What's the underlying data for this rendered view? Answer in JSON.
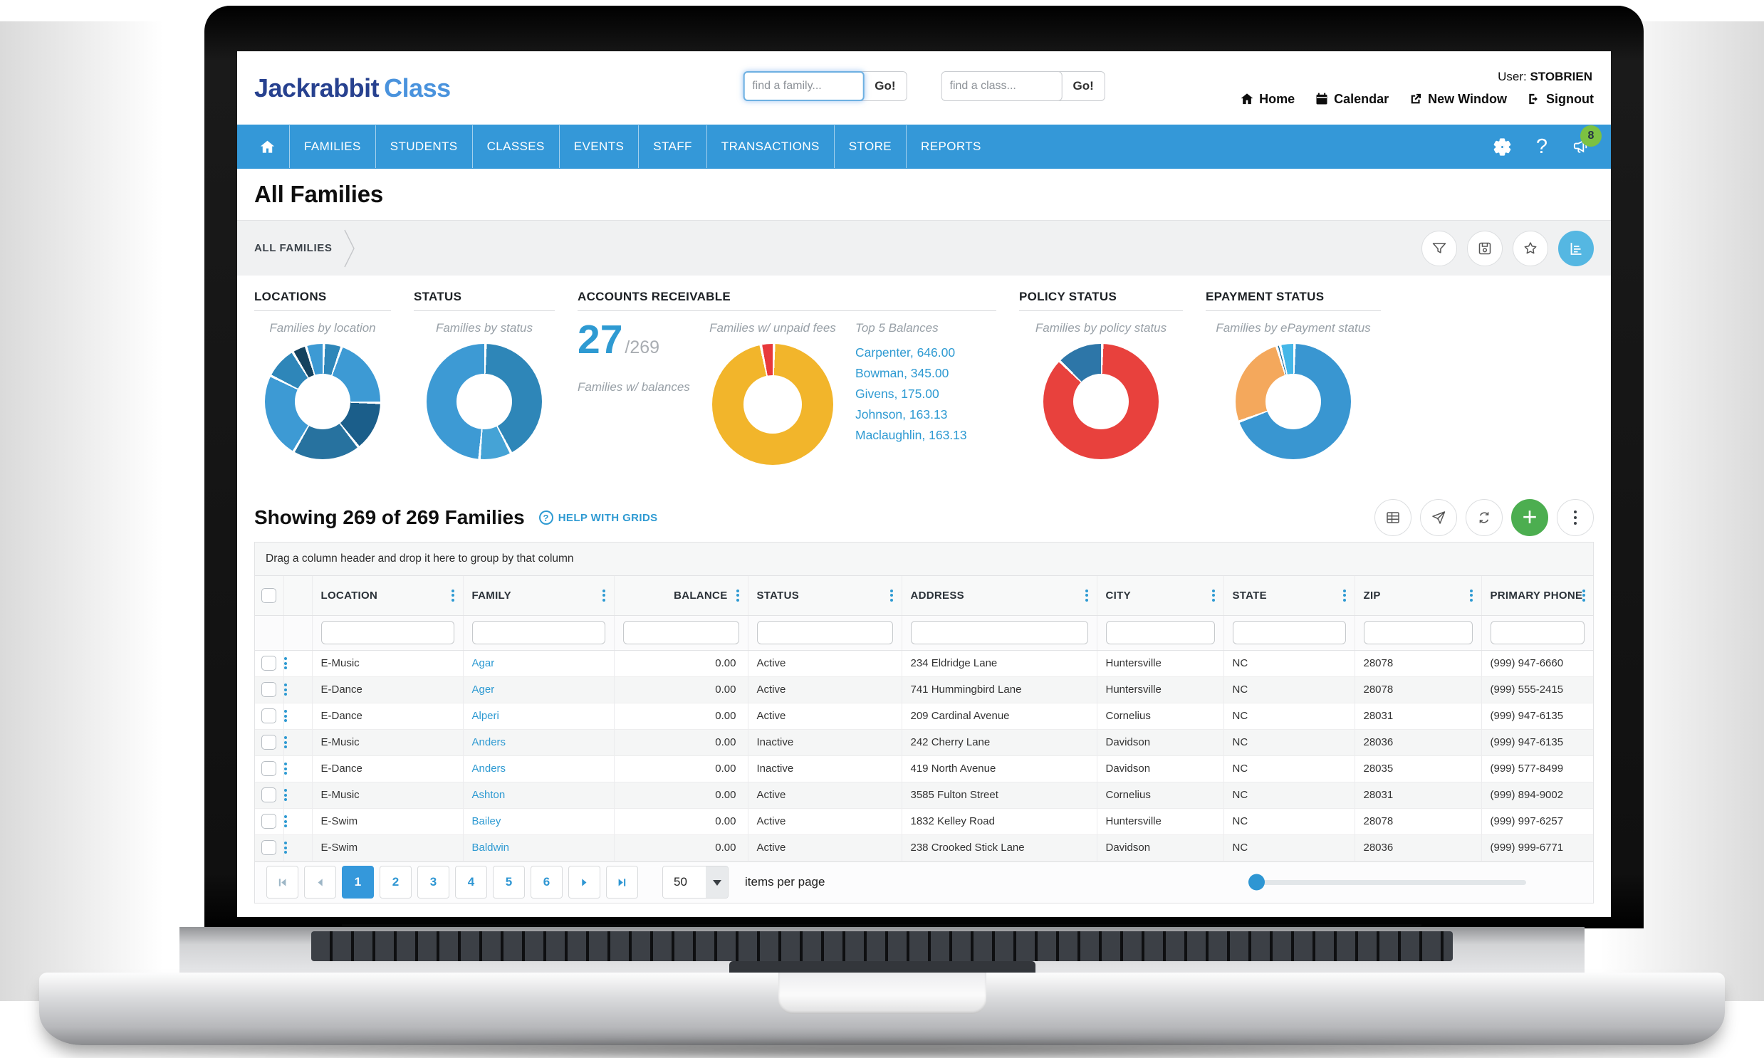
{
  "header": {
    "logo": {
      "part1": "Jackrabbit",
      "part2": "Class"
    },
    "family_search": {
      "placeholder": "find a family...",
      "go_label": "Go!"
    },
    "class_search": {
      "placeholder": "find a class...",
      "go_label": "Go!"
    },
    "user_label": "User:",
    "user_name": "STOBRIEN",
    "links": [
      {
        "label": "Home",
        "icon": "home-icon"
      },
      {
        "label": "Calendar",
        "icon": "calendar-icon"
      },
      {
        "label": "New Window",
        "icon": "new-window-icon"
      },
      {
        "label": "Signout",
        "icon": "signout-icon"
      }
    ]
  },
  "nav": {
    "items": [
      "FAMILIES",
      "STUDENTS",
      "CLASSES",
      "EVENTS",
      "STAFF",
      "TRANSACTIONS",
      "STORE",
      "REPORTS"
    ],
    "notification_count": "8"
  },
  "page": {
    "title": "All Families",
    "breadcrumb": "ALL FAMILIES"
  },
  "widgets": {
    "locations": {
      "title": "LOCATIONS",
      "subtitle": "Families by location"
    },
    "status": {
      "title": "STATUS",
      "subtitle": "Families by status"
    },
    "accounts_receivable": {
      "title": "ACCOUNTS RECEIVABLE",
      "count": "27",
      "total": "/269",
      "count_caption": "Families w/ balances",
      "donut_caption": "Families w/ unpaid fees",
      "top5_title": "Top 5 Balances",
      "top5": [
        "Carpenter, 646.00",
        "Bowman, 345.00",
        "Givens, 175.00",
        "Johnson, 163.13",
        "Maclaughlin, 163.13"
      ]
    },
    "policy": {
      "title": "POLICY STATUS",
      "subtitle": "Families by policy status"
    },
    "epayment": {
      "title": "EPAYMENT STATUS",
      "subtitle": "Families by ePayment status"
    }
  },
  "grid": {
    "summary": "Showing 269 of 269 Families",
    "help_label": "HELP WITH GRIDS",
    "group_hint": "Drag a column header and drop it here to group by that column",
    "columns": [
      "LOCATION",
      "FAMILY",
      "BALANCE",
      "STATUS",
      "ADDRESS",
      "CITY",
      "STATE",
      "ZIP",
      "PRIMARY PHONE"
    ],
    "rows": [
      {
        "location": "E-Music",
        "family": "Agar",
        "balance": "0.00",
        "status": "Active",
        "address": "234 Eldridge Lane",
        "city": "Huntersville",
        "state": "NC",
        "zip": "28078",
        "phone": "(999) 947-6660"
      },
      {
        "location": "E-Dance",
        "family": "Ager",
        "balance": "0.00",
        "status": "Active",
        "address": "741 Hummingbird Lane",
        "city": "Huntersville",
        "state": "NC",
        "zip": "28078",
        "phone": "(999) 555-2415"
      },
      {
        "location": "E-Dance",
        "family": "Alperi",
        "balance": "0.00",
        "status": "Active",
        "address": "209 Cardinal Avenue",
        "city": "Cornelius",
        "state": "NC",
        "zip": "28031",
        "phone": "(999) 947-6135"
      },
      {
        "location": "E-Music",
        "family": "Anders",
        "balance": "0.00",
        "status": "Inactive",
        "address": "242 Cherry Lane",
        "city": "Davidson",
        "state": "NC",
        "zip": "28036",
        "phone": "(999) 947-6135"
      },
      {
        "location": "E-Dance",
        "family": "Anders",
        "balance": "0.00",
        "status": "Inactive",
        "address": "419 North Avenue",
        "city": "Davidson",
        "state": "NC",
        "zip": "28035",
        "phone": "(999) 577-8499"
      },
      {
        "location": "E-Music",
        "family": "Ashton",
        "balance": "0.00",
        "status": "Active",
        "address": "3585 Fulton Street",
        "city": "Cornelius",
        "state": "NC",
        "zip": "28031",
        "phone": "(999) 894-9002"
      },
      {
        "location": "E-Swim",
        "family": "Bailey",
        "balance": "0.00",
        "status": "Active",
        "address": "1832 Kelley Road",
        "city": "Huntersville",
        "state": "NC",
        "zip": "28078",
        "phone": "(999) 997-6257"
      },
      {
        "location": "E-Swim",
        "family": "Baldwin",
        "balance": "0.00",
        "status": "Active",
        "address": "238 Crooked Stick Lane",
        "city": "Davidson",
        "state": "NC",
        "zip": "28036",
        "phone": "(999) 999-6771"
      }
    ],
    "pagination": {
      "pages": [
        "1",
        "2",
        "3",
        "4",
        "5",
        "6"
      ],
      "current": "1",
      "page_size": "50",
      "items_label": "items per page"
    }
  },
  "colors": {
    "navbar": "#3498d8",
    "link_blue": "#2e9ad2",
    "active_page": "#3498db",
    "badge_green": "#7cc142",
    "add_green": "#4cae50",
    "chart_toggle_blue": "#55b7e2"
  },
  "chart_data": [
    {
      "id": "locations",
      "type": "pie",
      "title": "Families by location",
      "segments": [
        {
          "value": 5,
          "color": "#2e86b9"
        },
        {
          "value": 20,
          "color": "#3d9ad4"
        },
        {
          "value": 14,
          "color": "#1b5e8a"
        },
        {
          "value": 19,
          "color": "#27729f"
        },
        {
          "value": 24,
          "color": "#3d9ad4"
        },
        {
          "value": 9,
          "color": "#2e86b9"
        },
        {
          "value": 4,
          "color": "#14425f"
        },
        {
          "value": 5,
          "color": "#3d9ad4"
        }
      ]
    },
    {
      "id": "status",
      "type": "pie",
      "title": "Families by status",
      "segments": [
        {
          "value": 42,
          "color": "#2e86b8"
        },
        {
          "value": 9,
          "color": "#45a3d6"
        },
        {
          "value": 49,
          "color": "#3d9ad4"
        }
      ]
    },
    {
      "id": "accounts_receivable",
      "type": "pie",
      "title": "Families w/ unpaid fees",
      "families_with_balances": 27,
      "total_families": 269,
      "segments": [
        {
          "value": 96.5,
          "color": "#f2b52b"
        },
        {
          "value": 3.5,
          "color": "#e8393b"
        }
      ],
      "top_5_balances": [
        {
          "family": "Carpenter",
          "amount": 646.0
        },
        {
          "family": "Bowman",
          "amount": 345.0
        },
        {
          "family": "Givens",
          "amount": 175.0
        },
        {
          "family": "Johnson",
          "amount": 163.13
        },
        {
          "family": "Maclaughlin",
          "amount": 163.13
        }
      ]
    },
    {
      "id": "policy",
      "type": "pie",
      "title": "Families by policy status",
      "segments": [
        {
          "value": 87,
          "color": "#e8413d"
        },
        {
          "value": 13,
          "color": "#2d76a8"
        }
      ]
    },
    {
      "id": "epayment",
      "type": "pie",
      "title": "Families by ePayment status",
      "segments": [
        {
          "value": 69,
          "color": "#3996d1"
        },
        {
          "value": 26,
          "color": "#f4a85c"
        },
        {
          "value": 1,
          "color": "#1f6e9c"
        },
        {
          "value": 4,
          "color": "#45b7e8"
        }
      ]
    }
  ]
}
